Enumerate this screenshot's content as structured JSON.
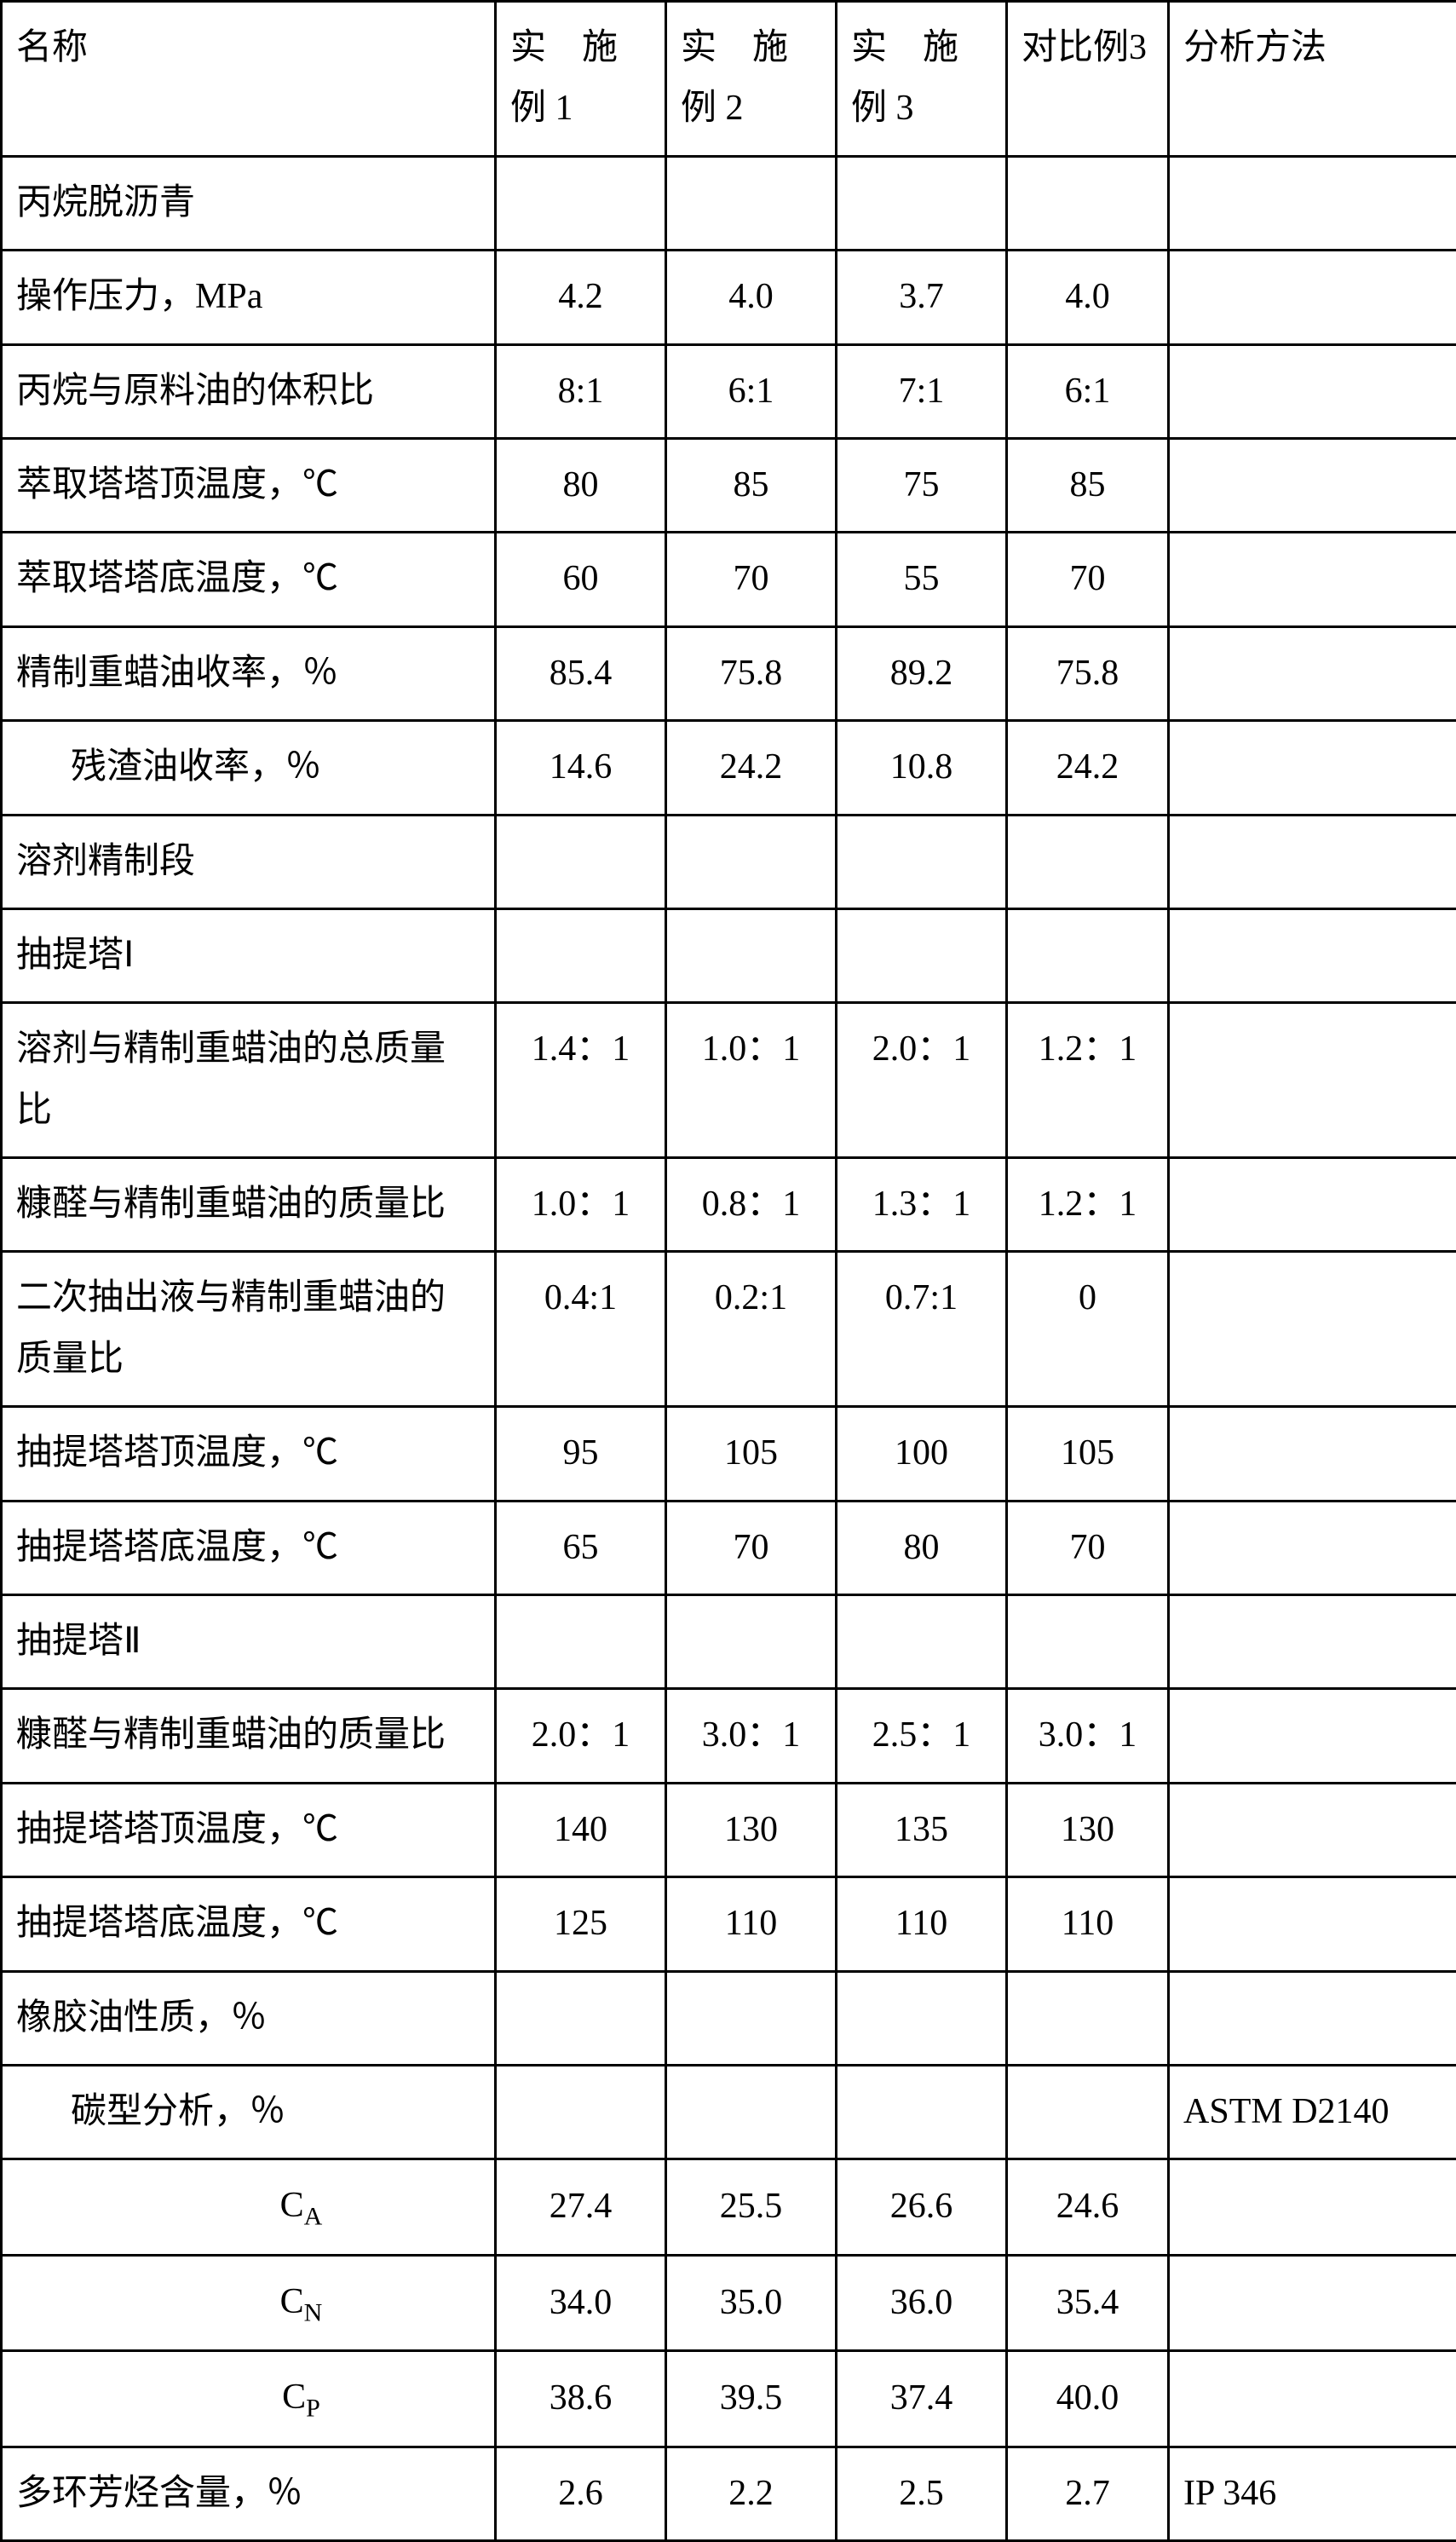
{
  "headers": {
    "name": "名称",
    "ex1": "实　施例 1",
    "ex2": "实　施例 2",
    "ex3": "实　施例 3",
    "comp3": "对比例3",
    "method": "分析方法"
  },
  "rows": [
    {
      "label": "丙烷脱沥青",
      "v": [
        "",
        "",
        "",
        "",
        ""
      ],
      "center": false
    },
    {
      "label": "操作压力，MPa",
      "v": [
        "4.2",
        "4.0",
        "3.7",
        "4.0",
        ""
      ],
      "center": true
    },
    {
      "label": "丙烷与原料油的体积比",
      "v": [
        "8:1",
        "6:1",
        "7:1",
        "6:1",
        ""
      ],
      "center": true
    },
    {
      "label": "萃取塔塔顶温度，℃",
      "v": [
        "80",
        "85",
        "75",
        "85",
        ""
      ],
      "center": true
    },
    {
      "label": "萃取塔塔底温度，℃",
      "v": [
        "60",
        "70",
        "55",
        "70",
        ""
      ],
      "center": true
    },
    {
      "label": "精制重蜡油收率，％",
      "v": [
        "85.4",
        "75.8",
        "89.2",
        "75.8",
        ""
      ],
      "center": true
    },
    {
      "label": "残渣油收率，％",
      "v": [
        "14.6",
        "24.2",
        "10.8",
        "24.2",
        ""
      ],
      "center": true,
      "indent": 1
    },
    {
      "label": "溶剂精制段",
      "v": [
        "",
        "",
        "",
        "",
        ""
      ],
      "center": false
    },
    {
      "label": "抽提塔Ⅰ",
      "v": [
        "",
        "",
        "",
        "",
        ""
      ],
      "center": false
    },
    {
      "label": "溶剂与精制重蜡油的总质量比",
      "v": [
        "1.4：1",
        "1.0：1",
        "2.0：1",
        "1.2：1",
        ""
      ],
      "center": true,
      "valignTop": true
    },
    {
      "label": "糠醛与精制重蜡油的质量比",
      "v": [
        "1.0：1",
        "0.8：1",
        "1.3：1",
        "1.2：1",
        ""
      ],
      "center": true,
      "valignTop": true
    },
    {
      "label": "二次抽出液与精制重蜡油的质量比",
      "v": [
        "0.4:1",
        "0.2:1",
        "0.7:1",
        "0",
        ""
      ],
      "center": true,
      "valignTop": true
    },
    {
      "label": "抽提塔塔顶温度，℃",
      "v": [
        "95",
        "105",
        "100",
        "105",
        ""
      ],
      "center": true
    },
    {
      "label": "抽提塔塔底温度，℃",
      "v": [
        "65",
        "70",
        "80",
        "70",
        ""
      ],
      "center": true
    },
    {
      "label": "抽提塔Ⅱ",
      "v": [
        "",
        "",
        "",
        "",
        ""
      ],
      "center": false
    },
    {
      "label": "糠醛与精制重蜡油的质量比",
      "v": [
        "2.0：1",
        "3.0：1",
        "2.5：1",
        "3.0：1",
        ""
      ],
      "center": true,
      "valignTop": true
    },
    {
      "label": "抽提塔塔顶温度，℃",
      "v": [
        "140",
        "130",
        "135",
        "130",
        ""
      ],
      "center": true
    },
    {
      "label": "抽提塔塔底温度，℃",
      "v": [
        "125",
        "110",
        "110",
        "110",
        ""
      ],
      "center": true
    },
    {
      "label": "橡胶油性质，％",
      "v": [
        "",
        "",
        "",
        "",
        ""
      ],
      "center": false
    },
    {
      "label": "碳型分析，％",
      "v": [
        "",
        "",
        "",
        "",
        "ASTM D2140"
      ],
      "center": false,
      "indent": 1
    },
    {
      "label": "C<sub>A</sub>",
      "v": [
        "27.4",
        "25.5",
        "26.6",
        "24.6",
        ""
      ],
      "center": true,
      "indent": 2,
      "html": true
    },
    {
      "label": "C<sub>N</sub>",
      "v": [
        "34.0",
        "35.0",
        "36.0",
        "35.4",
        ""
      ],
      "center": true,
      "indent": 2,
      "html": true
    },
    {
      "label": "C<sub>P</sub>",
      "v": [
        "38.6",
        "39.5",
        "37.4",
        "40.0",
        ""
      ],
      "center": true,
      "indent": 2,
      "html": true
    },
    {
      "label": "多环芳烃含量，％",
      "v": [
        "2.6",
        "2.2",
        "2.5",
        "2.7",
        "IP 346"
      ],
      "center": true
    }
  ]
}
